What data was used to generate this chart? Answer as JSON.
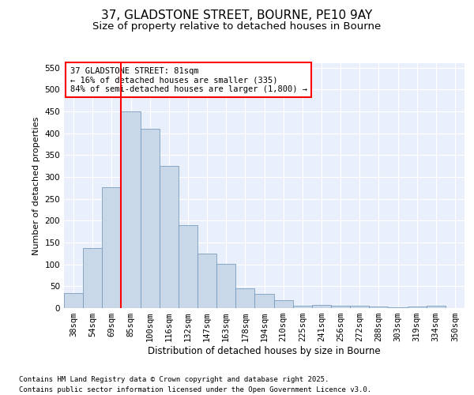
{
  "title1": "37, GLADSTONE STREET, BOURNE, PE10 9AY",
  "title2": "Size of property relative to detached houses in Bourne",
  "xlabel": "Distribution of detached houses by size in Bourne",
  "ylabel": "Number of detached properties",
  "categories": [
    "38sqm",
    "54sqm",
    "69sqm",
    "85sqm",
    "100sqm",
    "116sqm",
    "132sqm",
    "147sqm",
    "163sqm",
    "178sqm",
    "194sqm",
    "210sqm",
    "225sqm",
    "241sqm",
    "256sqm",
    "272sqm",
    "288sqm",
    "303sqm",
    "319sqm",
    "334sqm",
    "350sqm"
  ],
  "values": [
    35,
    137,
    277,
    450,
    410,
    325,
    190,
    125,
    102,
    45,
    33,
    18,
    6,
    8,
    5,
    5,
    3,
    2,
    3,
    5,
    0
  ],
  "bar_color": "#c8d8e8",
  "bar_edge_color": "#7a9cbf",
  "bg_color": "#eaf0fb",
  "grid_color": "#ffffff",
  "vline_color": "red",
  "annotation_text": "37 GLADSTONE STREET: 81sqm\n← 16% of detached houses are smaller (335)\n84% of semi-detached houses are larger (1,800) →",
  "annotation_box_color": "red",
  "ylim": [
    0,
    560
  ],
  "yticks": [
    0,
    50,
    100,
    150,
    200,
    250,
    300,
    350,
    400,
    450,
    500,
    550
  ],
  "footer": "Contains HM Land Registry data © Crown copyright and database right 2025.\nContains public sector information licensed under the Open Government Licence v3.0.",
  "title1_fontsize": 11,
  "title2_fontsize": 9.5,
  "xlabel_fontsize": 8.5,
  "ylabel_fontsize": 8,
  "tick_fontsize": 7.5,
  "footer_fontsize": 6.5,
  "ann_fontsize": 7.5
}
